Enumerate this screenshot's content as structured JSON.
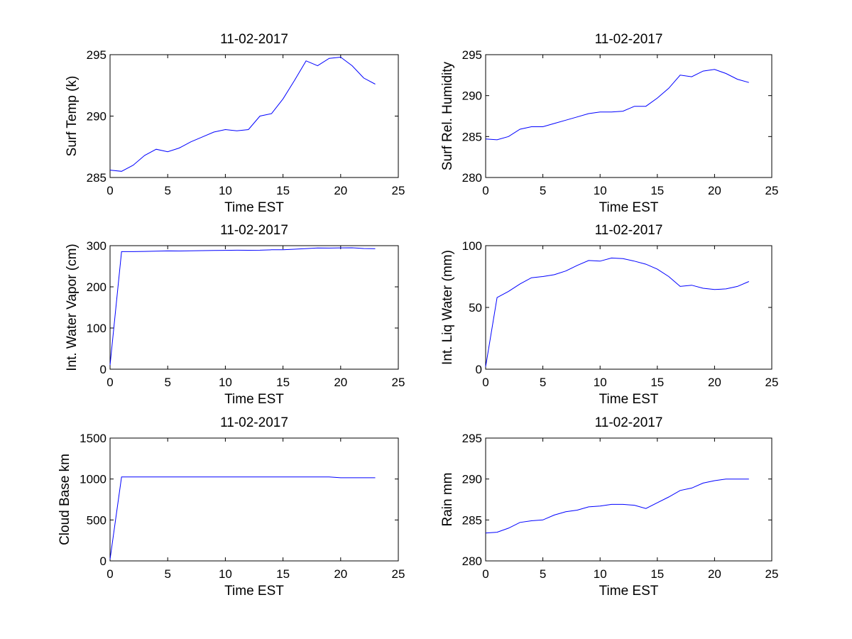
{
  "chart_data": [
    {
      "type": "line",
      "title": "11-02-2017",
      "xlabel": "Time EST",
      "ylabel": "Surf Temp (k)",
      "xlim": [
        0,
        25
      ],
      "ylim": [
        285,
        295
      ],
      "xticks": [
        "0",
        "5",
        "10",
        "15",
        "20",
        "25"
      ],
      "yticks": [
        "285",
        "290",
        "295"
      ],
      "grid": false,
      "line_color": "#0000ff",
      "series": [
        {
          "x": [
            0,
            1,
            2,
            3,
            4,
            5,
            6,
            7,
            8,
            9,
            10,
            11,
            12,
            13,
            14,
            15,
            16,
            17,
            18,
            19,
            20,
            21,
            22,
            23
          ],
          "values": [
            285.6,
            285.5,
            286.0,
            286.8,
            287.3,
            287.1,
            287.4,
            287.9,
            288.3,
            288.7,
            288.9,
            288.8,
            288.9,
            290.0,
            290.2,
            291.4,
            292.9,
            294.5,
            294.1,
            294.7,
            294.8,
            294.1,
            293.1,
            292.6
          ]
        }
      ]
    },
    {
      "type": "line",
      "title": "11-02-2017",
      "xlabel": "Time EST",
      "ylabel": "Surf Rel. Humidity",
      "xlim": [
        0,
        25
      ],
      "ylim": [
        280,
        295
      ],
      "xticks": [
        "0",
        "5",
        "10",
        "15",
        "20",
        "25"
      ],
      "yticks": [
        "280",
        "285",
        "290",
        "295"
      ],
      "grid": false,
      "line_color": "#0000ff",
      "series": [
        {
          "x": [
            0,
            1,
            2,
            3,
            4,
            5,
            6,
            7,
            8,
            9,
            10,
            11,
            12,
            13,
            14,
            15,
            16,
            17,
            18,
            19,
            20,
            21,
            22,
            23
          ],
          "values": [
            284.7,
            284.6,
            285.0,
            285.9,
            286.2,
            286.2,
            286.6,
            287.0,
            287.4,
            287.8,
            288.0,
            288.0,
            288.1,
            288.7,
            288.7,
            289.7,
            290.9,
            292.5,
            292.3,
            293.0,
            293.2,
            292.7,
            292.0,
            291.6
          ]
        }
      ]
    },
    {
      "type": "line",
      "title": "11-02-2017",
      "xlabel": "Time EST",
      "ylabel": "Int. Water Vapor (cm)",
      "xlim": [
        0,
        25
      ],
      "ylim": [
        0,
        300
      ],
      "xticks": [
        "0",
        "5",
        "10",
        "15",
        "20",
        "25"
      ],
      "yticks": [
        "0",
        "100",
        "200",
        "300"
      ],
      "grid": false,
      "line_color": "#0000ff",
      "series": [
        {
          "x": [
            0,
            1,
            2,
            3,
            4,
            5,
            6,
            7,
            8,
            9,
            10,
            11,
            12,
            13,
            14,
            15,
            16,
            17,
            18,
            19,
            20,
            21,
            22,
            23
          ],
          "values": [
            10,
            285.6,
            285.5,
            286,
            286.8,
            287.3,
            287.1,
            287.4,
            287.9,
            288.3,
            288.7,
            288.9,
            288.8,
            288.9,
            290,
            290.2,
            291.4,
            292.9,
            294.5,
            294.1,
            294.7,
            294.8,
            293.1,
            292.6
          ]
        }
      ]
    },
    {
      "type": "line",
      "title": "11-02-2017",
      "xlabel": "Time EST",
      "ylabel": "Int. Liq Water (mm)",
      "xlim": [
        0,
        25
      ],
      "ylim": [
        0,
        100
      ],
      "xticks": [
        "0",
        "5",
        "10",
        "15",
        "20",
        "25"
      ],
      "yticks": [
        "0",
        "50",
        "100"
      ],
      "grid": false,
      "line_color": "#0000ff",
      "series": [
        {
          "x": [
            0,
            1,
            2,
            3,
            4,
            5,
            6,
            7,
            8,
            9,
            10,
            11,
            12,
            13,
            14,
            15,
            16,
            17,
            18,
            19,
            20,
            21,
            22,
            23
          ],
          "values": [
            2,
            58,
            63,
            69,
            74,
            75,
            76.5,
            79.5,
            84,
            88,
            87.5,
            90,
            89.5,
            87.5,
            85,
            81,
            75,
            67,
            68,
            65.5,
            64.5,
            65,
            67,
            71
          ]
        }
      ]
    },
    {
      "type": "line",
      "title": "11-02-2017",
      "xlabel": "Time EST",
      "ylabel": "Cloud Base km",
      "xlim": [
        0,
        25
      ],
      "ylim": [
        0,
        1500
      ],
      "xticks": [
        "0",
        "5",
        "10",
        "15",
        "20",
        "25"
      ],
      "yticks": [
        "0",
        "500",
        "1000",
        "1500"
      ],
      "grid": false,
      "line_color": "#0000ff",
      "series": [
        {
          "x": [
            0,
            1,
            2,
            3,
            4,
            5,
            6,
            7,
            8,
            9,
            10,
            11,
            12,
            13,
            14,
            15,
            16,
            17,
            18,
            19,
            20,
            21,
            22,
            23
          ],
          "values": [
            20,
            1025,
            1025,
            1025,
            1025,
            1025,
            1025,
            1025,
            1025,
            1025,
            1025,
            1025,
            1025,
            1025,
            1025,
            1025,
            1025,
            1025,
            1025,
            1025,
            1015,
            1015,
            1015,
            1015
          ]
        }
      ]
    },
    {
      "type": "line",
      "title": "11-02-2017",
      "xlabel": "Time EST",
      "ylabel": "Rain mm",
      "xlim": [
        0,
        25
      ],
      "ylim": [
        280,
        295
      ],
      "xticks": [
        "0",
        "5",
        "10",
        "15",
        "20",
        "25"
      ],
      "yticks": [
        "280",
        "285",
        "290",
        "295"
      ],
      "grid": false,
      "line_color": "#0000ff",
      "series": [
        {
          "x": [
            0,
            1,
            2,
            3,
            4,
            5,
            6,
            7,
            8,
            9,
            10,
            11,
            12,
            13,
            14,
            15,
            16,
            17,
            18,
            19,
            20,
            21,
            22,
            23
          ],
          "values": [
            283.4,
            283.5,
            284.0,
            284.7,
            284.9,
            285.0,
            285.6,
            286.0,
            286.2,
            286.6,
            286.7,
            286.9,
            286.9,
            286.8,
            286.4,
            287.1,
            287.8,
            288.6,
            288.9,
            289.5,
            289.8,
            290.0,
            290.0,
            290.0
          ]
        }
      ]
    }
  ]
}
